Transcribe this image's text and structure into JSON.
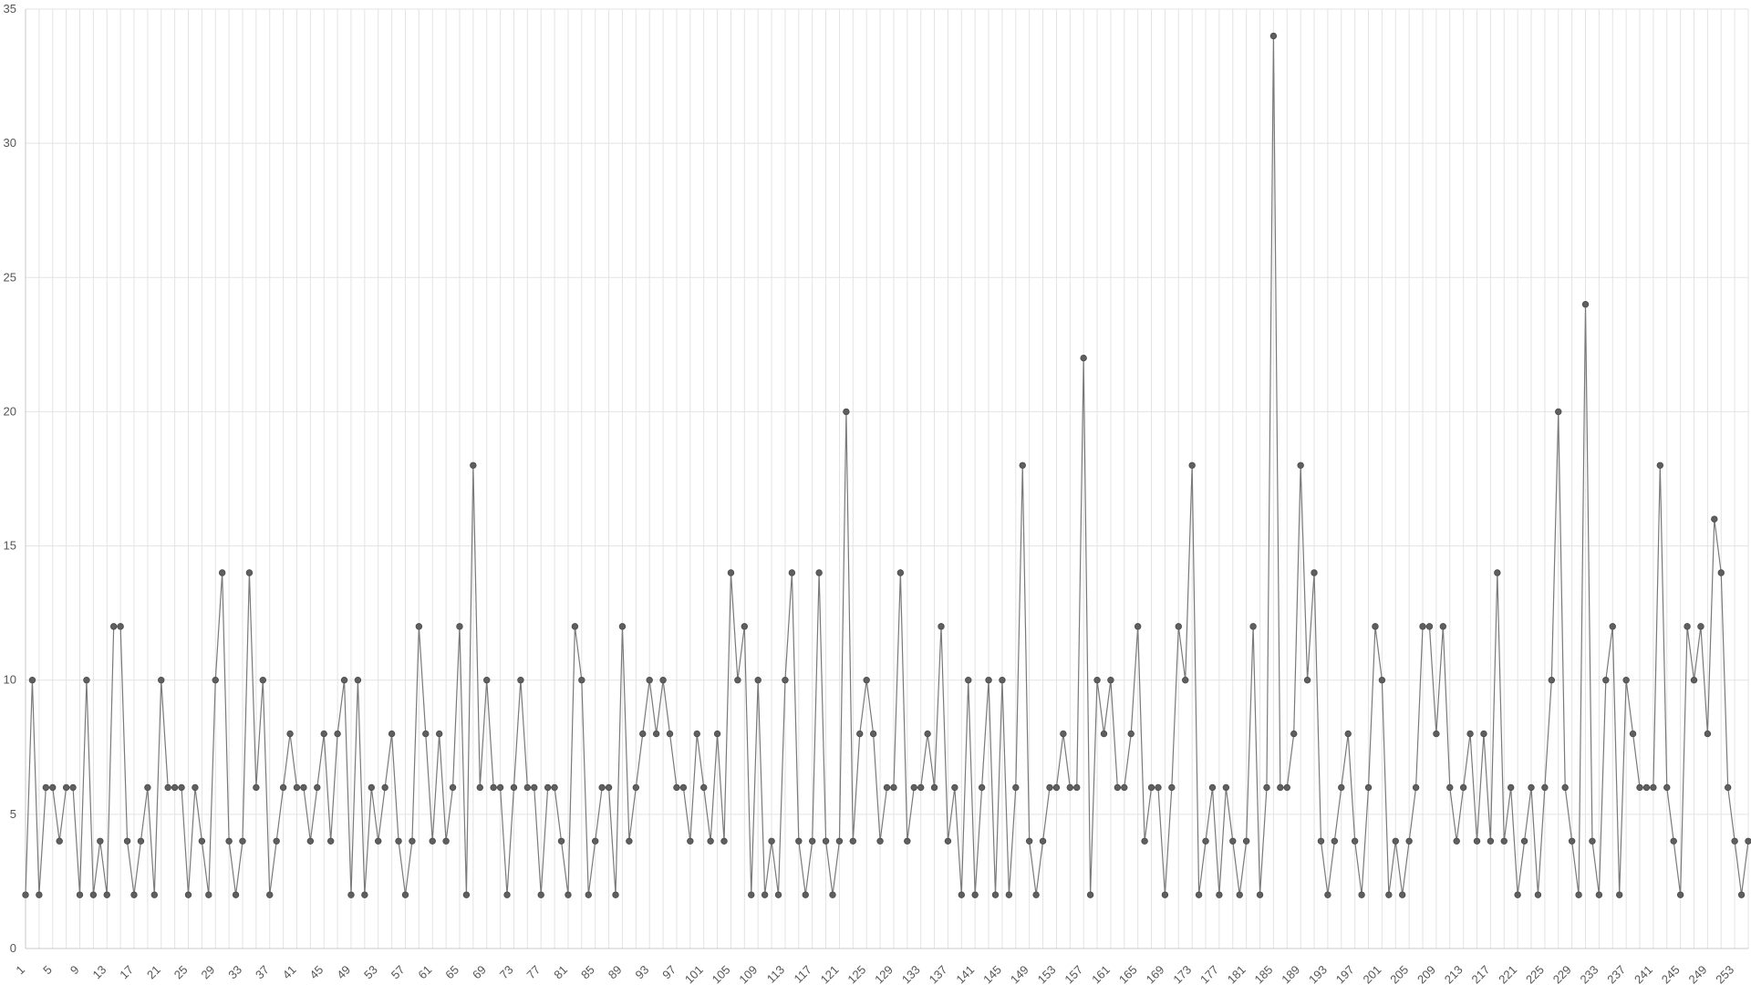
{
  "chart_data": {
    "type": "line",
    "title": "",
    "xlabel": "",
    "ylabel": "",
    "x_start": 1,
    "x_end": 255,
    "x_tick_labels": [
      "1",
      "5",
      "9",
      "13",
      "17",
      "21",
      "25",
      "29",
      "33",
      "37",
      "41",
      "45",
      "49",
      "53",
      "57",
      "61",
      "65",
      "69",
      "73",
      "77",
      "81",
      "85",
      "89",
      "93",
      "97",
      "101",
      "105",
      "109",
      "113",
      "117",
      "121",
      "125",
      "129",
      "133",
      "137",
      "141",
      "145",
      "149",
      "153",
      "157",
      "161",
      "165",
      "169",
      "173",
      "177",
      "181",
      "185",
      "189",
      "193",
      "197",
      "201",
      "205",
      "209",
      "213",
      "217",
      "221",
      "225",
      "229",
      "233",
      "237",
      "241",
      "245",
      "249",
      "253"
    ],
    "ylim": [
      0,
      35
    ],
    "y_ticks": [
      0,
      5,
      10,
      15,
      20,
      25,
      30,
      35
    ],
    "grid": true,
    "legend": "none",
    "colors": {
      "line": "#7a7a7a",
      "point": "#5f5f5f",
      "grid": "#e3e3e3"
    },
    "values": [
      2,
      10,
      2,
      6,
      6,
      4,
      6,
      6,
      2,
      10,
      2,
      4,
      2,
      12,
      12,
      4,
      2,
      4,
      6,
      2,
      10,
      6,
      6,
      6,
      2,
      6,
      4,
      2,
      10,
      14,
      4,
      2,
      4,
      14,
      6,
      10,
      2,
      4,
      6,
      8,
      6,
      6,
      4,
      6,
      8,
      4,
      8,
      10,
      2,
      10,
      2,
      6,
      4,
      6,
      8,
      4,
      2,
      4,
      12,
      8,
      4,
      8,
      4,
      6,
      12,
      2,
      18,
      6,
      10,
      6,
      6,
      2,
      6,
      10,
      6,
      6,
      2,
      6,
      6,
      4,
      2,
      12,
      10,
      2,
      4,
      6,
      6,
      2,
      12,
      4,
      6,
      8,
      10,
      8,
      10,
      8,
      6,
      6,
      4,
      8,
      6,
      4,
      8,
      4,
      14,
      10,
      12,
      2,
      10,
      2,
      4,
      2,
      10,
      14,
      4,
      2,
      4,
      14,
      4,
      2,
      4,
      20,
      4,
      8,
      10,
      8,
      4,
      6,
      6,
      14,
      4,
      6,
      6,
      8,
      6,
      12,
      4,
      6,
      2,
      10,
      2,
      6,
      10,
      2,
      10,
      2,
      6,
      18,
      4,
      2,
      4,
      6,
      6,
      8,
      6,
      6,
      22,
      2,
      10,
      8,
      10,
      6,
      6,
      8,
      12,
      4,
      6,
      6,
      2,
      6,
      12,
      10,
      18,
      2,
      4,
      6,
      2,
      6,
      4,
      2,
      4,
      12,
      2,
      6,
      34,
      6,
      6,
      8,
      18,
      10,
      14,
      4,
      2,
      4,
      6,
      8,
      4,
      2,
      6,
      12,
      10,
      2,
      4,
      2,
      4,
      6,
      12,
      12,
      8,
      12,
      6,
      4,
      6,
      8,
      4,
      8,
      4,
      14,
      4,
      6,
      2,
      4,
      6,
      2,
      6,
      10,
      20,
      6,
      4,
      2,
      24,
      4,
      2,
      10,
      12,
      2,
      10,
      8,
      6,
      6,
      6,
      18,
      6,
      4,
      2,
      12,
      10,
      12,
      8,
      16,
      14,
      6,
      4,
      2,
      4
    ]
  }
}
